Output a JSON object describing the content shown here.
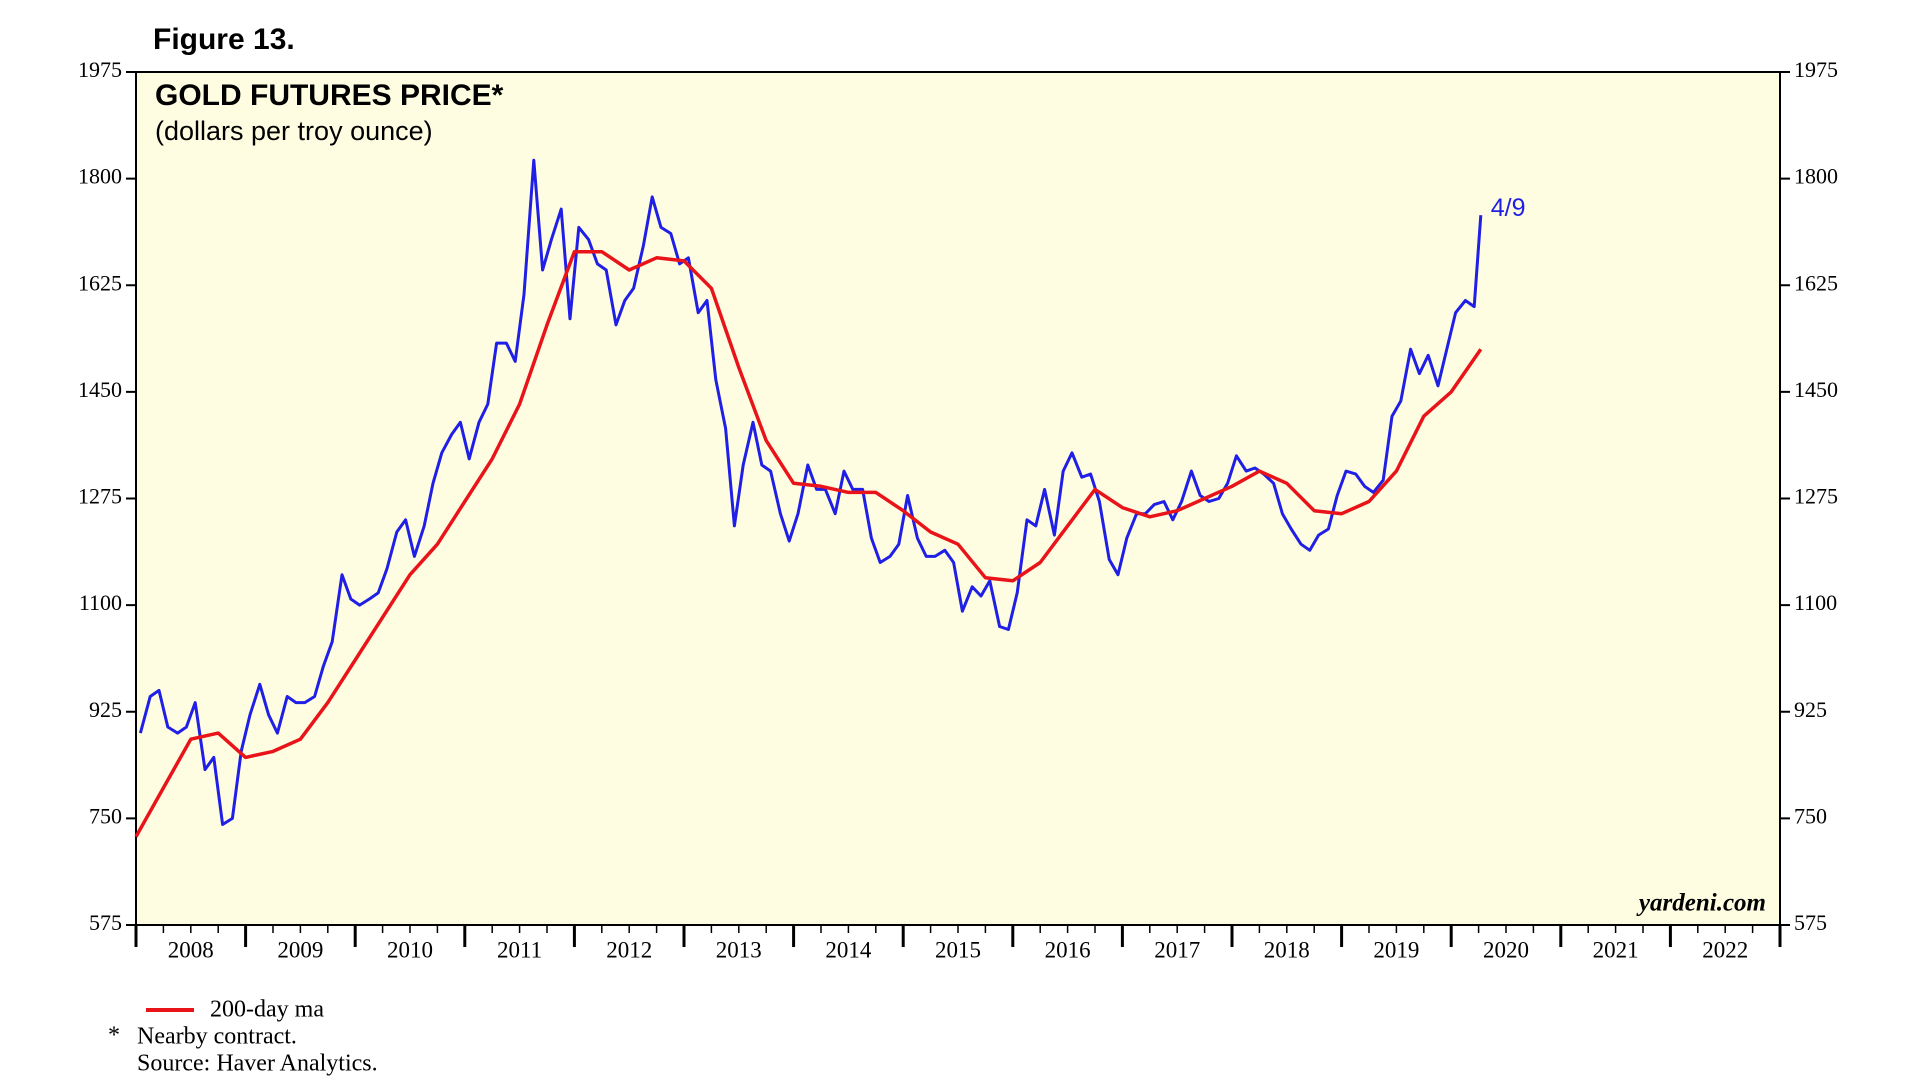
{
  "chart_data": {
    "type": "line",
    "figure_label": "Figure 13.",
    "title": "GOLD FUTURES PRICE*",
    "subtitle": "(dollars per troy ounce)",
    "annotation": "4/9",
    "watermark": "yardeni.com",
    "footnote_marker": "*",
    "footnote": "Nearby contract.",
    "source": "Source: Haver Analytics.",
    "background": "#fffde1",
    "xlim": [
      2008,
      2023
    ],
    "xticks": [
      2008,
      2009,
      2010,
      2011,
      2012,
      2013,
      2014,
      2015,
      2016,
      2017,
      2018,
      2019,
      2020,
      2021,
      2022
    ],
    "ylim": [
      575,
      1975
    ],
    "yticks": [
      575,
      750,
      925,
      1100,
      1275,
      1450,
      1625,
      1800,
      1975
    ],
    "series": [
      {
        "color": "#1f1fe6",
        "x": [
          2008.04,
          2008.13,
          2008.21,
          2008.29,
          2008.38,
          2008.46,
          2008.54,
          2008.63,
          2008.71,
          2008.79,
          2008.88,
          2008.96,
          2009.04,
          2009.13,
          2009.21,
          2009.29,
          2009.38,
          2009.46,
          2009.54,
          2009.63,
          2009.71,
          2009.79,
          2009.88,
          2009.96,
          2010.04,
          2010.13,
          2010.21,
          2010.29,
          2010.38,
          2010.46,
          2010.54,
          2010.63,
          2010.71,
          2010.79,
          2010.88,
          2010.96,
          2011.04,
          2011.13,
          2011.21,
          2011.29,
          2011.38,
          2011.46,
          2011.54,
          2011.63,
          2011.71,
          2011.79,
          2011.88,
          2011.96,
          2012.04,
          2012.13,
          2012.21,
          2012.29,
          2012.38,
          2012.46,
          2012.54,
          2012.63,
          2012.71,
          2012.79,
          2012.88,
          2012.96,
          2013.04,
          2013.13,
          2013.21,
          2013.29,
          2013.38,
          2013.46,
          2013.54,
          2013.63,
          2013.71,
          2013.79,
          2013.88,
          2013.96,
          2014.04,
          2014.13,
          2014.21,
          2014.29,
          2014.38,
          2014.46,
          2014.54,
          2014.63,
          2014.71,
          2014.79,
          2014.88,
          2014.96,
          2015.04,
          2015.13,
          2015.21,
          2015.29,
          2015.38,
          2015.46,
          2015.54,
          2015.63,
          2015.71,
          2015.79,
          2015.88,
          2015.96,
          2016.04,
          2016.13,
          2016.21,
          2016.29,
          2016.38,
          2016.46,
          2016.54,
          2016.63,
          2016.71,
          2016.79,
          2016.88,
          2016.96,
          2017.04,
          2017.13,
          2017.21,
          2017.29,
          2017.38,
          2017.46,
          2017.54,
          2017.63,
          2017.71,
          2017.79,
          2017.88,
          2017.96,
          2018.04,
          2018.13,
          2018.21,
          2018.29,
          2018.38,
          2018.46,
          2018.54,
          2018.63,
          2018.71,
          2018.79,
          2018.88,
          2018.96,
          2019.04,
          2019.13,
          2019.21,
          2019.29,
          2019.38,
          2019.46,
          2019.54,
          2019.63,
          2019.71,
          2019.79,
          2019.88,
          2019.96,
          2020.04,
          2020.13,
          2020.21,
          2020.27
        ],
        "values": [
          890,
          950,
          960,
          900,
          890,
          900,
          940,
          830,
          850,
          740,
          750,
          860,
          920,
          970,
          920,
          890,
          950,
          940,
          940,
          950,
          1000,
          1040,
          1150,
          1110,
          1100,
          1110,
          1120,
          1160,
          1220,
          1240,
          1180,
          1230,
          1300,
          1350,
          1380,
          1400,
          1340,
          1400,
          1430,
          1530,
          1530,
          1500,
          1610,
          1830,
          1650,
          1700,
          1750,
          1570,
          1720,
          1700,
          1660,
          1650,
          1560,
          1600,
          1620,
          1690,
          1770,
          1720,
          1710,
          1660,
          1670,
          1580,
          1600,
          1470,
          1390,
          1230,
          1330,
          1400,
          1330,
          1320,
          1250,
          1205,
          1250,
          1330,
          1290,
          1290,
          1250,
          1320,
          1290,
          1290,
          1210,
          1170,
          1180,
          1200,
          1280,
          1210,
          1180,
          1180,
          1190,
          1170,
          1090,
          1130,
          1115,
          1140,
          1065,
          1060,
          1120,
          1240,
          1230,
          1290,
          1215,
          1320,
          1350,
          1310,
          1315,
          1270,
          1175,
          1150,
          1210,
          1250,
          1250,
          1265,
          1270,
          1240,
          1270,
          1320,
          1280,
          1270,
          1275,
          1300,
          1345,
          1320,
          1325,
          1315,
          1300,
          1250,
          1225,
          1200,
          1190,
          1215,
          1225,
          1280,
          1320,
          1315,
          1295,
          1285,
          1305,
          1410,
          1435,
          1520,
          1480,
          1510,
          1460,
          1520,
          1580,
          1600,
          1590,
          1740
        ]
      },
      {
        "name": "200-day ma",
        "color": "#e8141a",
        "x": [
          2008.0,
          2008.25,
          2008.5,
          2008.75,
          2009.0,
          2009.25,
          2009.5,
          2009.75,
          2010.0,
          2010.25,
          2010.5,
          2010.75,
          2011.0,
          2011.25,
          2011.5,
          2011.75,
          2012.0,
          2012.25,
          2012.5,
          2012.75,
          2013.0,
          2013.25,
          2013.5,
          2013.75,
          2014.0,
          2014.25,
          2014.5,
          2014.75,
          2015.0,
          2015.25,
          2015.5,
          2015.75,
          2016.0,
          2016.25,
          2016.5,
          2016.75,
          2017.0,
          2017.25,
          2017.5,
          2017.75,
          2018.0,
          2018.25,
          2018.5,
          2018.75,
          2019.0,
          2019.25,
          2019.5,
          2019.75,
          2020.0,
          2020.27
        ],
        "values": [
          720,
          800,
          880,
          890,
          850,
          860,
          880,
          940,
          1010,
          1080,
          1150,
          1200,
          1270,
          1340,
          1430,
          1560,
          1680,
          1680,
          1650,
          1670,
          1665,
          1620,
          1490,
          1370,
          1300,
          1295,
          1285,
          1285,
          1255,
          1220,
          1200,
          1145,
          1140,
          1170,
          1230,
          1290,
          1260,
          1245,
          1255,
          1275,
          1295,
          1320,
          1300,
          1255,
          1250,
          1270,
          1320,
          1410,
          1450,
          1520
        ]
      }
    ]
  }
}
